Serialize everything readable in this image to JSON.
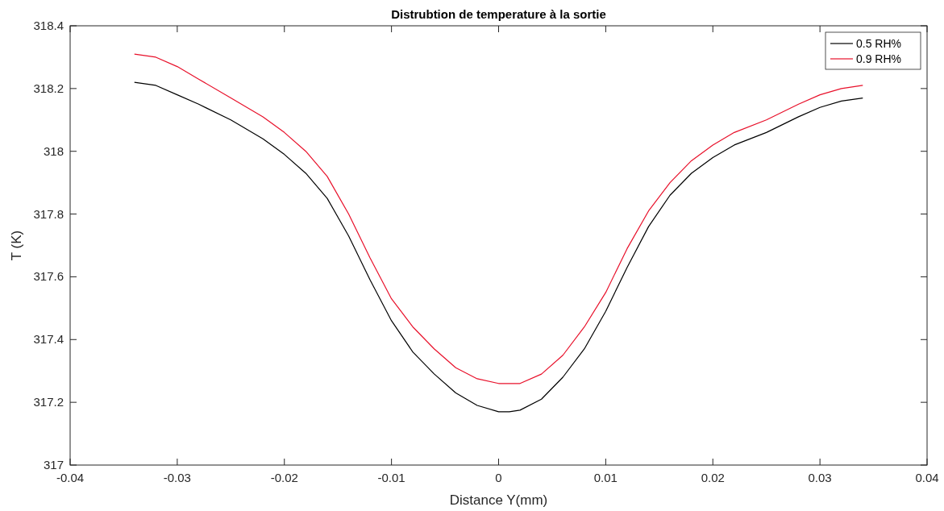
{
  "chart_data": {
    "type": "line",
    "title": "Distrubtion de temperature à la sortie",
    "xlabel": "Distance Y(mm)",
    "ylabel": "T (K)",
    "xlim": [
      -0.04,
      0.04
    ],
    "xticks": [
      -0.04,
      -0.03,
      -0.02,
      -0.01,
      0,
      0.01,
      0.02,
      0.03,
      0.04
    ],
    "ylim": [
      317,
      318.4
    ],
    "yticks": [
      317,
      317.2,
      317.4,
      317.6,
      317.8,
      318,
      318.2,
      318.4
    ],
    "grid": false,
    "legend": "top right",
    "marker": "none",
    "line_style": "solid",
    "series": [
      {
        "name": "0.5 RH%",
        "color": "#000000",
        "x": [
          -0.034,
          -0.032,
          -0.03,
          -0.028,
          -0.025,
          -0.022,
          -0.02,
          -0.018,
          -0.016,
          -0.014,
          -0.012,
          -0.01,
          -0.008,
          -0.006,
          -0.004,
          -0.002,
          0,
          0.001,
          0.002,
          0.004,
          0.006,
          0.008,
          0.01,
          0.012,
          0.014,
          0.016,
          0.018,
          0.02,
          0.022,
          0.025,
          0.028,
          0.03,
          0.032,
          0.034
        ],
        "values": [
          318.22,
          318.21,
          318.18,
          318.15,
          318.1,
          318.04,
          317.99,
          317.93,
          317.85,
          317.73,
          317.59,
          317.46,
          317.36,
          317.29,
          317.23,
          317.19,
          317.17,
          317.17,
          317.175,
          317.21,
          317.28,
          317.37,
          317.49,
          317.63,
          317.76,
          317.86,
          317.93,
          317.98,
          318.02,
          318.06,
          318.11,
          318.14,
          318.16,
          318.17
        ]
      },
      {
        "name": "0.9 RH%",
        "color": "#e8102a",
        "x": [
          -0.034,
          -0.032,
          -0.03,
          -0.028,
          -0.025,
          -0.022,
          -0.02,
          -0.018,
          -0.016,
          -0.014,
          -0.012,
          -0.01,
          -0.008,
          -0.006,
          -0.004,
          -0.002,
          0,
          0.002,
          0.004,
          0.006,
          0.008,
          0.01,
          0.012,
          0.014,
          0.016,
          0.018,
          0.02,
          0.022,
          0.025,
          0.028,
          0.03,
          0.032,
          0.034
        ],
        "values": [
          318.31,
          318.3,
          318.27,
          318.23,
          318.17,
          318.11,
          318.06,
          318,
          317.92,
          317.8,
          317.66,
          317.53,
          317.44,
          317.37,
          317.31,
          317.275,
          317.26,
          317.26,
          317.29,
          317.35,
          317.44,
          317.55,
          317.69,
          317.81,
          317.9,
          317.97,
          318.02,
          318.06,
          318.1,
          318.15,
          318.18,
          318.2,
          318.21
        ]
      }
    ]
  }
}
